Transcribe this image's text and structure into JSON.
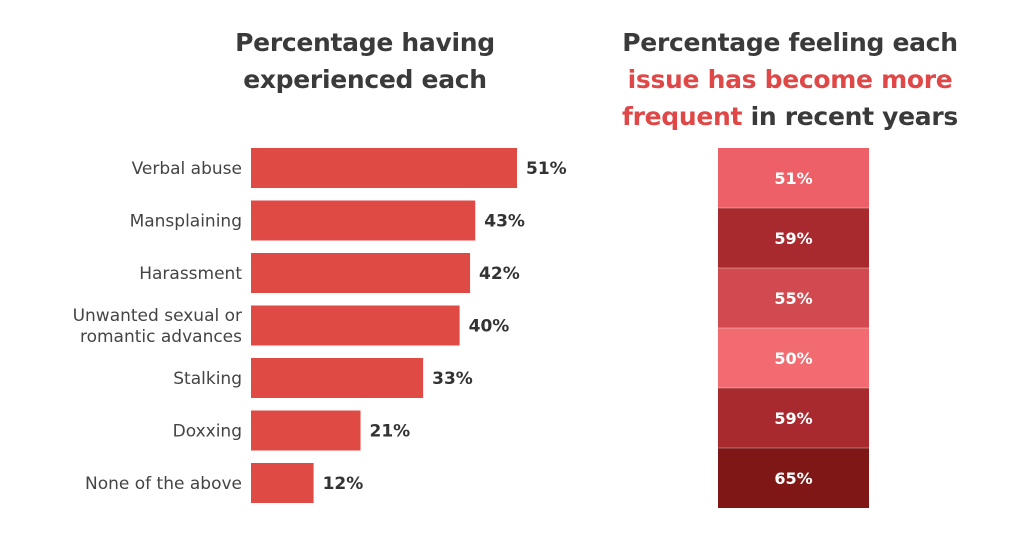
{
  "chart_data": [
    {
      "type": "bar",
      "orientation": "horizontal",
      "title": "Percentage having experienced each",
      "categories": [
        "Verbal abuse",
        "Mansplaining",
        "Harassment",
        "Unwanted sexual or romantic advances",
        "Stalking",
        "Doxxing",
        "None of the above"
      ],
      "category_lines": [
        [
          "Verbal abuse"
        ],
        [
          "Mansplaining"
        ],
        [
          "Harassment"
        ],
        [
          "Unwanted sexual or",
          "romantic advances"
        ],
        [
          "Stalking"
        ],
        [
          "Doxxing"
        ],
        [
          "None of the above"
        ]
      ],
      "values": [
        51,
        43,
        42,
        40,
        33,
        21,
        12
      ],
      "value_labels": [
        "51%",
        "43%",
        "42%",
        "40%",
        "33%",
        "21%",
        "12%"
      ],
      "unit": "%",
      "bar_color": "#e04a44",
      "xlim": [
        0,
        51
      ]
    },
    {
      "type": "heatmap",
      "title": "Percentage feeling each issue has become more frequent in recent years",
      "title_parts": {
        "line1": "Percentage feeling each",
        "highlight1": "issue has become more",
        "highlight2": "frequent",
        "rest": " in recent years"
      },
      "values": [
        51,
        59,
        55,
        50,
        59,
        65
      ],
      "value_labels": [
        "51%",
        "59%",
        "55%",
        "50%",
        "59%",
        "65%"
      ],
      "cell_colors": [
        "#ee6068",
        "#a82a2f",
        "#d14a4f",
        "#f26b70",
        "#a82a2f",
        "#7f1717"
      ],
      "highlight_color": "#e04848"
    }
  ]
}
